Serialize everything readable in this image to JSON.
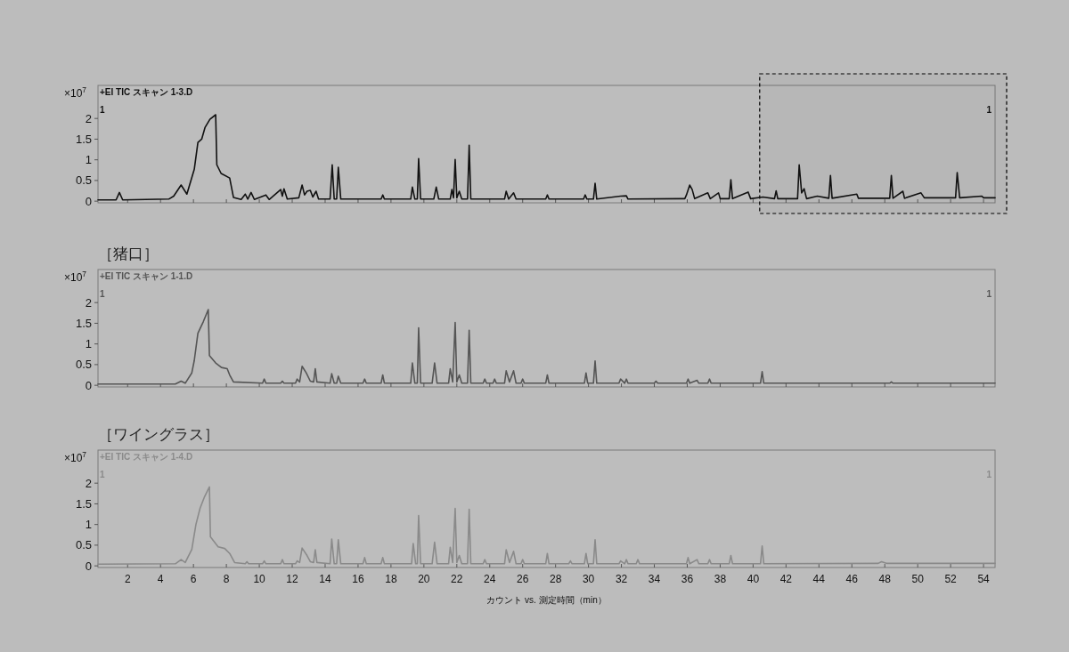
{
  "chart_data": [
    {
      "type": "line",
      "color": "#111111",
      "ylabel": "×10$^{7}$",
      "annotations": [
        "+EI TIC スキャン 1-3.D",
        "1",
        "1"
      ],
      "tick_labels": "y",
      "xlim": [
        0.2,
        54.7
      ],
      "ylim": [
        -0.04,
        2.8
      ],
      "xticks": [
        2,
        4,
        6,
        8,
        10,
        12,
        14,
        16,
        18,
        20,
        22,
        24,
        26,
        28,
        30,
        32,
        34,
        36,
        38,
        40,
        42,
        44,
        46,
        48,
        50,
        52,
        54
      ],
      "yticks": [
        0,
        0.5,
        1,
        1.5,
        2
      ],
      "bands": [
        {
          "axis": "x",
          "from": 40.4,
          "to": 54.7,
          "color": "#000000"
        }
      ],
      "x": [
        0.2,
        1.3,
        1.5,
        1.7,
        4.5,
        4.8,
        5.25,
        5.6,
        6.05,
        6.27,
        6.5,
        6.7,
        7.0,
        7.35,
        7.42,
        7.68,
        8.2,
        8.43,
        8.9,
        9.15,
        9.3,
        9.5,
        9.7,
        10.4,
        10.6,
        11.3,
        11.4,
        11.5,
        11.7,
        12.4,
        12.6,
        12.75,
        12.9,
        13.1,
        13.25,
        13.45,
        13.6,
        14.3,
        14.43,
        14.55,
        14.7,
        14.8,
        14.95,
        17.4,
        17.5,
        17.6,
        19.2,
        19.3,
        19.45,
        19.6,
        19.68,
        19.8,
        20.6,
        20.75,
        20.9,
        21.6,
        21.7,
        21.8,
        21.9,
        22.0,
        22.15,
        22.3,
        22.65,
        22.75,
        22.85,
        24.9,
        25.0,
        25.15,
        25.45,
        25.6,
        27.4,
        27.5,
        27.6,
        29.7,
        29.8,
        29.9,
        30.3,
        30.4,
        30.5,
        31.95,
        32.3,
        32.4,
        35.85,
        35.95,
        36.15,
        36.3,
        36.45,
        37.25,
        37.4,
        37.9,
        38.0,
        38.55,
        38.65,
        38.75,
        39.7,
        39.85,
        40.6,
        41.3,
        41.4,
        41.5,
        42.7,
        42.8,
        42.95,
        43.1,
        43.25,
        43.9,
        44.6,
        44.7,
        44.8,
        46.3,
        46.4,
        48.3,
        48.4,
        48.5,
        49.1,
        49.2,
        50.2,
        50.4,
        52.3,
        52.4,
        52.55,
        53.9,
        54.0,
        54.7
      ],
      "values": [
        0.03,
        0.03,
        0.21,
        0.03,
        0.05,
        0.12,
        0.39,
        0.17,
        0.77,
        1.42,
        1.5,
        1.78,
        1.98,
        2.09,
        0.88,
        0.67,
        0.56,
        0.09,
        0.04,
        0.17,
        0.05,
        0.21,
        0.04,
        0.15,
        0.04,
        0.28,
        0.12,
        0.3,
        0.05,
        0.08,
        0.39,
        0.15,
        0.24,
        0.26,
        0.1,
        0.24,
        0.05,
        0.05,
        0.88,
        0.05,
        0.05,
        0.82,
        0.05,
        0.05,
        0.15,
        0.05,
        0.05,
        0.34,
        0.05,
        0.05,
        1.03,
        0.05,
        0.05,
        0.34,
        0.05,
        0.05,
        0.28,
        0.08,
        1.01,
        0.08,
        0.24,
        0.05,
        0.05,
        1.35,
        0.05,
        0.05,
        0.24,
        0.05,
        0.2,
        0.05,
        0.05,
        0.15,
        0.05,
        0.05,
        0.15,
        0.05,
        0.05,
        0.43,
        0.05,
        0.12,
        0.13,
        0.05,
        0.06,
        0.15,
        0.39,
        0.28,
        0.06,
        0.2,
        0.06,
        0.2,
        0.06,
        0.06,
        0.52,
        0.06,
        0.22,
        0.06,
        0.1,
        0.06,
        0.25,
        0.06,
        0.06,
        0.88,
        0.2,
        0.3,
        0.06,
        0.12,
        0.07,
        0.62,
        0.07,
        0.17,
        0.07,
        0.07,
        0.62,
        0.07,
        0.24,
        0.07,
        0.2,
        0.08,
        0.08,
        0.69,
        0.08,
        0.12,
        0.08,
        0.08
      ]
    },
    {
      "type": "line",
      "color": "#555555",
      "title": "［猪口］",
      "ylabel": "×10$^{7}$",
      "annotations": [
        "+EI TIC スキャン 1-1.D",
        "1",
        "1"
      ],
      "tick_labels": "y",
      "xlim": [
        0.2,
        54.7
      ],
      "ylim": [
        -0.04,
        2.8
      ],
      "xticks": [
        2,
        4,
        6,
        8,
        10,
        12,
        14,
        16,
        18,
        20,
        22,
        24,
        26,
        28,
        30,
        32,
        34,
        36,
        38,
        40,
        42,
        44,
        46,
        48,
        50,
        52,
        54
      ],
      "yticks": [
        0,
        0.5,
        1,
        1.5,
        2
      ],
      "x": [
        0.2,
        4.9,
        5.25,
        5.5,
        5.9,
        6.05,
        6.27,
        6.6,
        6.9,
        6.97,
        7.35,
        7.7,
        8.05,
        8.2,
        8.43,
        10.2,
        10.3,
        10.4,
        11.3,
        11.4,
        11.5,
        12.2,
        12.3,
        12.45,
        12.6,
        12.85,
        13.1,
        13.3,
        13.4,
        13.5,
        14.3,
        14.4,
        14.55,
        14.7,
        14.8,
        14.95,
        16.3,
        16.4,
        16.5,
        17.4,
        17.5,
        17.6,
        19.2,
        19.3,
        19.45,
        19.6,
        19.68,
        19.8,
        20.5,
        20.65,
        20.8,
        21.5,
        21.6,
        21.75,
        21.9,
        22.0,
        22.15,
        22.3,
        22.65,
        22.75,
        22.85,
        23.6,
        23.7,
        23.8,
        24.2,
        24.3,
        24.4,
        24.9,
        25.0,
        25.2,
        25.45,
        25.6,
        25.9,
        26.0,
        26.1,
        27.4,
        27.5,
        27.6,
        29.75,
        29.85,
        29.95,
        30.3,
        30.4,
        30.5,
        31.85,
        31.95,
        32.2,
        32.3,
        32.4,
        34.0,
        34.1,
        34.2,
        35.95,
        36.05,
        36.15,
        36.6,
        36.7,
        37.25,
        37.35,
        37.45,
        40.45,
        40.55,
        40.65,
        48.3,
        48.4,
        48.5,
        54.7
      ],
      "values": [
        0.03,
        0.03,
        0.1,
        0.05,
        0.3,
        0.6,
        1.26,
        1.54,
        1.83,
        0.72,
        0.54,
        0.43,
        0.4,
        0.25,
        0.08,
        0.05,
        0.15,
        0.05,
        0.05,
        0.1,
        0.05,
        0.05,
        0.15,
        0.08,
        0.46,
        0.3,
        0.1,
        0.08,
        0.4,
        0.08,
        0.05,
        0.28,
        0.05,
        0.05,
        0.22,
        0.05,
        0.05,
        0.15,
        0.05,
        0.05,
        0.25,
        0.05,
        0.05,
        0.54,
        0.05,
        0.05,
        1.39,
        0.05,
        0.05,
        0.54,
        0.05,
        0.05,
        0.4,
        0.08,
        1.52,
        0.08,
        0.25,
        0.05,
        0.05,
        1.33,
        0.05,
        0.05,
        0.15,
        0.05,
        0.05,
        0.15,
        0.05,
        0.05,
        0.35,
        0.08,
        0.35,
        0.05,
        0.05,
        0.15,
        0.05,
        0.05,
        0.25,
        0.05,
        0.05,
        0.3,
        0.05,
        0.05,
        0.59,
        0.05,
        0.05,
        0.15,
        0.05,
        0.15,
        0.05,
        0.05,
        0.1,
        0.05,
        0.05,
        0.15,
        0.05,
        0.12,
        0.05,
        0.05,
        0.15,
        0.05,
        0.05,
        0.33,
        0.05,
        0.05,
        0.08,
        0.05,
        0.05
      ]
    },
    {
      "type": "line",
      "color": "#8a8a8a",
      "title": "［ワイングラス］",
      "ylabel": "×10$^{7}$",
      "xlabel": "カウント vs. 測定時間（min）",
      "annotations": [
        "+EI TIC スキャン 1-4.D",
        "1",
        "1"
      ],
      "xlim": [
        0.2,
        54.7
      ],
      "ylim": [
        -0.04,
        2.8
      ],
      "xticks": [
        2,
        4,
        6,
        8,
        10,
        12,
        14,
        16,
        18,
        20,
        22,
        24,
        26,
        28,
        30,
        32,
        34,
        36,
        38,
        40,
        42,
        44,
        46,
        48,
        50,
        52,
        54
      ],
      "yticks": [
        0,
        0.5,
        1,
        1.5,
        2
      ],
      "x": [
        0.2,
        4.9,
        5.25,
        5.5,
        5.9,
        6.15,
        6.4,
        6.65,
        6.97,
        7.03,
        7.5,
        7.9,
        8.2,
        8.5,
        9.15,
        9.25,
        9.35,
        10.2,
        10.3,
        10.4,
        11.3,
        11.4,
        11.5,
        12.2,
        12.3,
        12.45,
        12.6,
        12.9,
        13.1,
        13.3,
        13.4,
        13.5,
        14.3,
        14.4,
        14.55,
        14.7,
        14.8,
        14.95,
        16.3,
        16.4,
        16.5,
        17.4,
        17.5,
        17.6,
        19.25,
        19.35,
        19.5,
        19.6,
        19.68,
        19.8,
        20.5,
        20.65,
        20.8,
        21.5,
        21.6,
        21.75,
        21.9,
        22.0,
        22.15,
        22.3,
        22.65,
        22.75,
        22.85,
        23.6,
        23.7,
        23.8,
        24.9,
        25.0,
        25.2,
        25.45,
        25.6,
        25.9,
        26.0,
        26.1,
        27.4,
        27.5,
        27.6,
        28.8,
        28.9,
        29.0,
        29.75,
        29.85,
        29.95,
        30.3,
        30.4,
        30.5,
        31.85,
        31.95,
        32.2,
        32.3,
        32.4,
        32.9,
        33.0,
        33.1,
        35.95,
        36.05,
        36.15,
        36.6,
        36.7,
        37.25,
        37.35,
        37.45,
        38.55,
        38.65,
        38.75,
        40.45,
        40.55,
        40.65,
        47.6,
        47.8,
        48.1,
        54.7
      ],
      "values": [
        0.04,
        0.05,
        0.15,
        0.08,
        0.4,
        1.0,
        1.39,
        1.65,
        1.91,
        0.7,
        0.46,
        0.42,
        0.3,
        0.08,
        0.05,
        0.1,
        0.05,
        0.05,
        0.12,
        0.05,
        0.05,
        0.15,
        0.05,
        0.05,
        0.12,
        0.08,
        0.43,
        0.25,
        0.1,
        0.08,
        0.39,
        0.08,
        0.05,
        0.65,
        0.05,
        0.05,
        0.63,
        0.05,
        0.05,
        0.2,
        0.05,
        0.05,
        0.2,
        0.05,
        0.05,
        0.54,
        0.05,
        0.05,
        1.22,
        0.05,
        0.05,
        0.57,
        0.05,
        0.05,
        0.45,
        0.08,
        1.39,
        0.08,
        0.25,
        0.05,
        0.05,
        1.37,
        0.05,
        0.05,
        0.15,
        0.05,
        0.05,
        0.39,
        0.08,
        0.35,
        0.05,
        0.05,
        0.15,
        0.05,
        0.05,
        0.3,
        0.05,
        0.05,
        0.12,
        0.05,
        0.05,
        0.3,
        0.05,
        0.05,
        0.63,
        0.05,
        0.05,
        0.12,
        0.05,
        0.15,
        0.05,
        0.05,
        0.15,
        0.05,
        0.05,
        0.2,
        0.05,
        0.15,
        0.05,
        0.05,
        0.15,
        0.05,
        0.05,
        0.25,
        0.05,
        0.05,
        0.48,
        0.05,
        0.06,
        0.1,
        0.06,
        0.06
      ]
    }
  ]
}
